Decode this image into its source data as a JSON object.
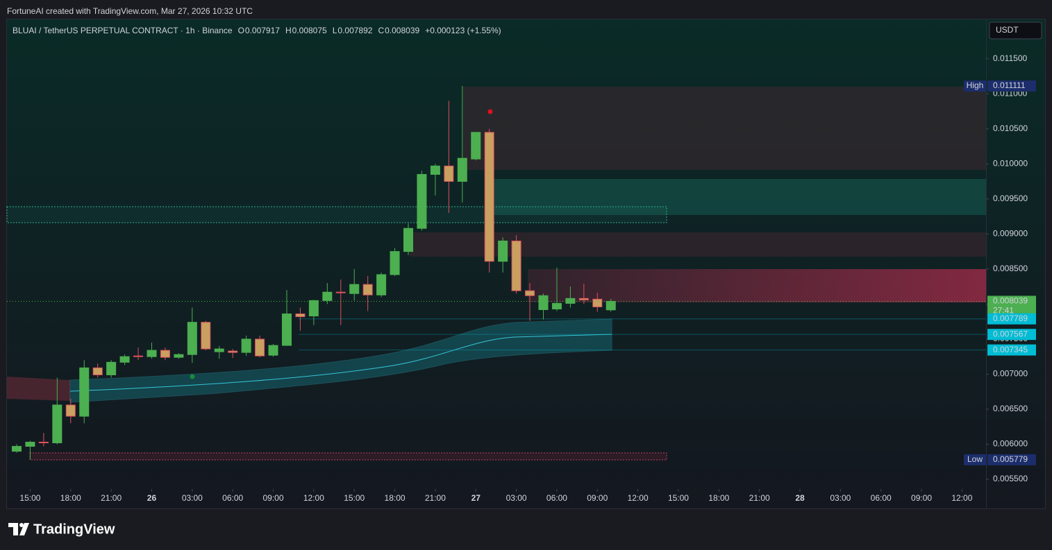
{
  "watermark": "FortuneAI created with TradingView.com, Mar 27, 2026 10:32 UTC",
  "brand": "TradingView",
  "chart_data": {
    "type": "candlestick",
    "title": "BLUAI / TetherUS PERPETUAL CONTRACT · 1h · Binance",
    "ohlc_letters": [
      "O",
      "H",
      "L",
      "C"
    ],
    "change": "+0.000123 (+1.55%)",
    "currency": "USDT",
    "up_color": "#4caf50",
    "down_color": "#e04f5f",
    "x": [
      0,
      1,
      2,
      3,
      4,
      5,
      6,
      7,
      8,
      9,
      10,
      11,
      12,
      13,
      14,
      15,
      16,
      17,
      18,
      19,
      20,
      21,
      22,
      23,
      24,
      25,
      26,
      27,
      28,
      29,
      30,
      31,
      32,
      33,
      34,
      35,
      36,
      37,
      38,
      39,
      40,
      41,
      42,
      43,
      44
    ],
    "open": [
      0.0059,
      0.00597,
      0.00603,
      0.00602,
      0.00656,
      0.0064,
      0.00709,
      0.00699,
      0.00717,
      0.00726,
      0.00725,
      0.00734,
      0.00724,
      0.00728,
      0.00774,
      0.00732,
      0.00733,
      0.00731,
      0.0075,
      0.00727,
      0.00741,
      0.00786,
      0.00783,
      0.00805,
      0.00817,
      0.00815,
      0.00828,
      0.00813,
      0.00842,
      0.00875,
      0.00908,
      0.00985,
      0.00997,
      0.00975,
      0.01007,
      0.01045,
      0.00861,
      0.0089,
      0.00819,
      0.00792,
      0.00793,
      0.00801,
      0.00808,
      0.00807,
      0.007917
    ],
    "high": [
      0.006,
      0.00605,
      0.00616,
      0.00695,
      0.00665,
      0.0072,
      0.00715,
      0.0072,
      0.00728,
      0.00738,
      0.00745,
      0.00738,
      0.0073,
      0.00795,
      0.00776,
      0.0074,
      0.00736,
      0.00755,
      0.00755,
      0.00743,
      0.0082,
      0.00795,
      0.00806,
      0.0083,
      0.00835,
      0.0085,
      0.0084,
      0.00845,
      0.0088,
      0.00915,
      0.0099,
      0.01,
      0.0109,
      0.011111,
      0.01045,
      0.0105,
      0.00895,
      0.00898,
      0.0083,
      0.00815,
      0.00852,
      0.00825,
      0.00829,
      0.00816,
      0.008075
    ],
    "low": [
      0.00588,
      0.005779,
      0.00597,
      0.006,
      0.0063,
      0.0063,
      0.00695,
      0.00695,
      0.00713,
      0.0072,
      0.00722,
      0.0072,
      0.00722,
      0.00716,
      0.00734,
      0.00722,
      0.00723,
      0.00726,
      0.00724,
      0.00725,
      0.00741,
      0.00762,
      0.0077,
      0.008,
      0.0077,
      0.00805,
      0.0079,
      0.0081,
      0.0084,
      0.0087,
      0.00905,
      0.00955,
      0.0093,
      0.00945,
      0.01005,
      0.00845,
      0.00845,
      0.00815,
      0.00776,
      0.00778,
      0.0079,
      0.00795,
      0.008,
      0.00789,
      0.007892
    ],
    "close": [
      0.00597,
      0.00603,
      0.00602,
      0.00656,
      0.0064,
      0.00709,
      0.00699,
      0.00717,
      0.00725,
      0.00725,
      0.00734,
      0.00724,
      0.00728,
      0.00774,
      0.00736,
      0.00736,
      0.00731,
      0.0075,
      0.00726,
      0.00741,
      0.00786,
      0.00782,
      0.00805,
      0.00817,
      0.00816,
      0.00828,
      0.00813,
      0.00842,
      0.00875,
      0.00908,
      0.00985,
      0.00997,
      0.00975,
      0.01008,
      0.01045,
      0.00861,
      0.0089,
      0.00819,
      0.00812,
      0.00812,
      0.00801,
      0.00808,
      0.00806,
      0.00796,
      0.008039
    ],
    "xlim": [
      -0.72,
      71.78
    ],
    "xticks": [
      {
        "value": 1,
        "label": "15:00"
      },
      {
        "value": 4,
        "label": "18:00"
      },
      {
        "value": 7,
        "label": "21:00"
      },
      {
        "value": 10,
        "label": "26"
      },
      {
        "value": 13,
        "label": "03:00"
      },
      {
        "value": 16,
        "label": "06:00"
      },
      {
        "value": 19,
        "label": "09:00"
      },
      {
        "value": 22,
        "label": "12:00"
      },
      {
        "value": 25,
        "label": "15:00"
      },
      {
        "value": 28,
        "label": "18:00"
      },
      {
        "value": 31,
        "label": "21:00"
      },
      {
        "value": 34,
        "label": "27"
      },
      {
        "value": 37,
        "label": "03:00"
      },
      {
        "value": 40,
        "label": "06:00"
      },
      {
        "value": 43,
        "label": "09:00"
      },
      {
        "value": 46,
        "label": "12:00"
      },
      {
        "value": 49,
        "label": "15:00"
      },
      {
        "value": 52,
        "label": "18:00"
      },
      {
        "value": 55,
        "label": "21:00"
      },
      {
        "value": 58,
        "label": "28"
      },
      {
        "value": 61,
        "label": "03:00"
      },
      {
        "value": 64,
        "label": "06:00"
      },
      {
        "value": 67,
        "label": "09:00"
      },
      {
        "value": 70,
        "label": "12:00"
      }
    ],
    "ylim": [
      0.005362,
      0.012061
    ],
    "yticks": [
      {
        "value": 0.0055,
        "label": "0.005500"
      },
      {
        "value": 0.006,
        "label": "0.006000"
      },
      {
        "value": 0.0065,
        "label": "0.006500"
      },
      {
        "value": 0.007,
        "label": "0.007000"
      },
      {
        "value": 0.0075,
        "label": "0.007500"
      },
      {
        "value": 0.008,
        "label": "0.008000"
      },
      {
        "value": 0.0085,
        "label": "0.008500"
      },
      {
        "value": 0.009,
        "label": "0.009000"
      },
      {
        "value": 0.0095,
        "label": "0.009500"
      },
      {
        "value": 0.01,
        "label": "0.010000"
      },
      {
        "value": 0.0105,
        "label": "0.010500"
      },
      {
        "value": 0.011,
        "label": "0.011000"
      },
      {
        "value": 0.0115,
        "label": "0.011500"
      }
    ],
    "countdown": "27:41",
    "levels": [
      {
        "value": 0.007789,
        "color": "#00bcd4"
      },
      {
        "value": 0.007567,
        "color": "#00bcd4"
      },
      {
        "value": 0.007345,
        "color": "#00bcd4"
      }
    ],
    "extremes": [
      {
        "name": "High",
        "value": 0.011111
      },
      {
        "name": "Low",
        "value": 0.005779
      }
    ]
  }
}
